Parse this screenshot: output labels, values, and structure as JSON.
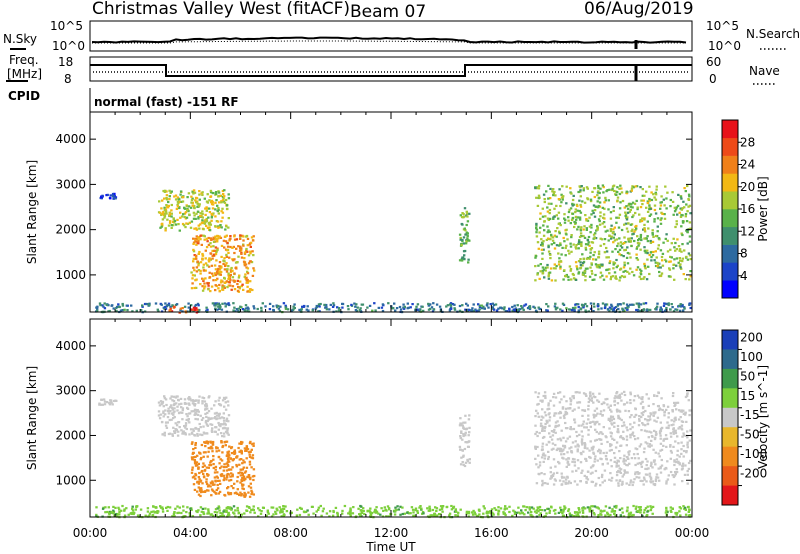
{
  "header": {
    "station": "Christmas Valley West (fitACF)",
    "beam": "Beam 07",
    "date": "06/Aug/2019"
  },
  "noise_panel": {
    "left_label": "N.Sky",
    "right_label": "N.Search",
    "left_ticks": [
      "10^5",
      "10^0"
    ],
    "right_ticks": [
      "10^5",
      "10^0"
    ]
  },
  "freq_panel": {
    "left_label_line1": "Freq.",
    "left_label_line2": "[MHz]",
    "right_label": "Nave",
    "left_ticks": [
      "18",
      "8"
    ],
    "right_ticks": [
      "60",
      "0"
    ]
  },
  "cpid": {
    "label": "CPID",
    "mode": "normal (fast) -151 RF"
  },
  "time_axis": {
    "tick_labels": [
      "00:00",
      "04:00",
      "08:00",
      "12:00",
      "16:00",
      "20:00",
      "00:00"
    ],
    "label": "Time UT"
  },
  "colors": {
    "power_scale": [
      "#0000ff",
      "#1c44c8",
      "#2d6aa0",
      "#3f8f6d",
      "#59b24a",
      "#a8c935",
      "#f2b814",
      "#f08019",
      "#ee4a18",
      "#e8121a"
    ],
    "velocity_scale": [
      "#1a3fb8",
      "#2e6a8c",
      "#3f9a4b",
      "#7dcf3b",
      "#c8c8c8",
      "#e8b72c",
      "#ef8a1d",
      "#ea5a18",
      "#e3171a"
    ]
  },
  "chart_data": [
    {
      "type": "heatmap",
      "panel": "power",
      "ylabel": "Slant Range [km]",
      "xlabel": "Time UT",
      "x_range_hours": [
        0,
        24
      ],
      "ylim": [
        180,
        4600
      ],
      "y_ticks": [
        1000,
        2000,
        3000,
        4000
      ],
      "colorbar": {
        "label": "Power [dB]",
        "range": [
          0,
          32
        ],
        "tick_values": [
          4,
          8,
          12,
          16,
          20,
          24,
          28
        ],
        "tick_labels": [
          "4",
          "8",
          "12",
          "16",
          "20",
          "24",
          "28"
        ]
      },
      "echo_regions": [
        {
          "t_start": 0.2,
          "t_end": 24.0,
          "range_start": 200,
          "range_end": 400,
          "power_db": 9
        },
        {
          "t_start": 0.3,
          "t_end": 1.0,
          "range_start": 2700,
          "range_end": 2830,
          "power_db": 4
        },
        {
          "t_start": 2.7,
          "t_end": 5.5,
          "range_start": 2000,
          "range_end": 2900,
          "power_db": 18
        },
        {
          "t_start": 4.0,
          "t_end": 6.5,
          "range_start": 650,
          "range_end": 1900,
          "power_db": 22
        },
        {
          "t_start": 3.1,
          "t_end": 4.3,
          "range_start": 180,
          "range_end": 330,
          "power_db": 27
        },
        {
          "t_start": 14.7,
          "t_end": 15.1,
          "range_start": 1300,
          "range_end": 2500,
          "power_db": 14
        },
        {
          "t_start": 17.7,
          "t_end": 23.9,
          "range_start": 900,
          "range_end": 3000,
          "power_db": 16
        }
      ]
    },
    {
      "type": "heatmap",
      "panel": "velocity",
      "ylabel": "Slant Range [km]",
      "xlabel": "Time UT",
      "x_range_hours": [
        0,
        24
      ],
      "ylim": [
        180,
        4600
      ],
      "y_ticks": [
        1000,
        2000,
        3000,
        4000
      ],
      "colorbar": {
        "label": "Velocity [m s^-1]",
        "tick_values": [
          200,
          100,
          50,
          15,
          -15,
          -50,
          -100,
          -200
        ],
        "tick_labels": [
          "200",
          "100",
          "50",
          "15",
          "-15",
          "-50",
          "-100",
          "-200"
        ]
      },
      "echo_regions": [
        {
          "t_start": 0.2,
          "t_end": 24.0,
          "range_start": 200,
          "range_end": 450,
          "velocity": 40
        },
        {
          "t_start": 0.3,
          "t_end": 1.0,
          "range_start": 2700,
          "range_end": 2830,
          "velocity": 0
        },
        {
          "t_start": 2.7,
          "t_end": 5.5,
          "range_start": 2000,
          "range_end": 2900,
          "velocity": 0
        },
        {
          "t_start": 4.0,
          "t_end": 6.5,
          "range_start": 650,
          "range_end": 1900,
          "velocity": -80
        },
        {
          "t_start": 14.7,
          "t_end": 15.1,
          "range_start": 1300,
          "range_end": 2500,
          "velocity": 0
        },
        {
          "t_start": 17.7,
          "t_end": 23.9,
          "range_start": 900,
          "range_end": 3000,
          "velocity": 0
        }
      ]
    }
  ]
}
